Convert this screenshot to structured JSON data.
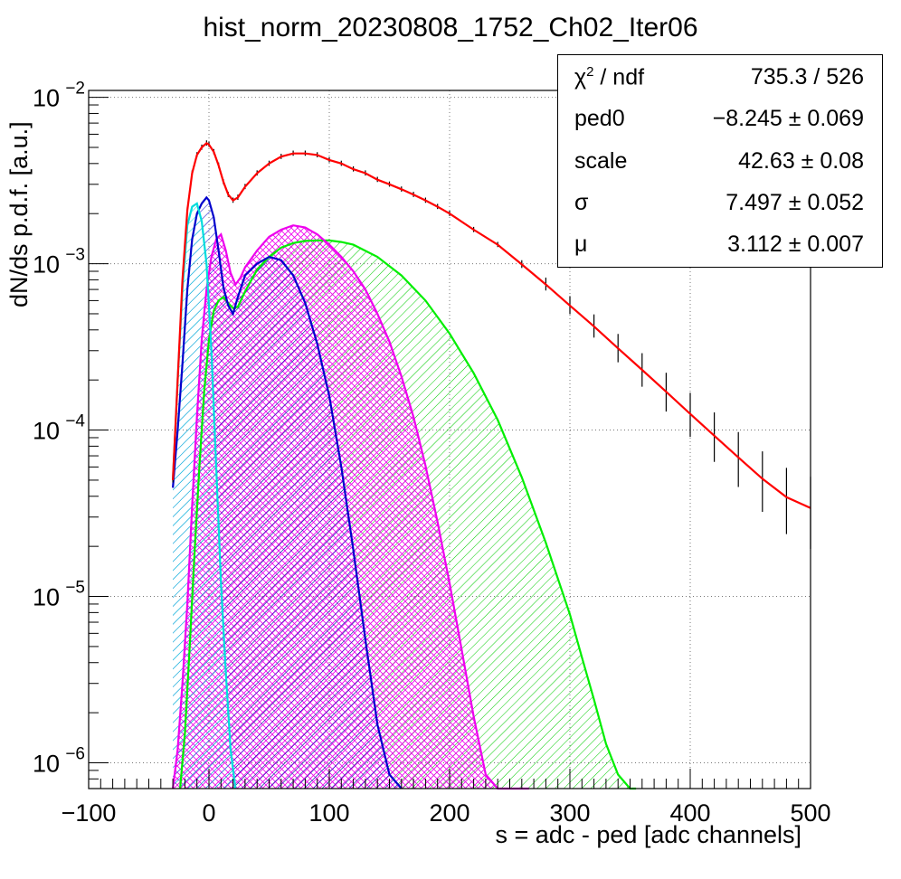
{
  "chart_data": {
    "type": "line",
    "title": "hist_norm_20230808_1752_Ch02_Iter06",
    "xlabel": "s = adc - ped [adc channels]",
    "ylabel": "dN/ds p.d.f. [a.u.]",
    "xlim": [
      -100,
      500
    ],
    "ylim": [
      7e-07,
      0.011
    ],
    "y_scale": "log",
    "grid": true,
    "x_ticks": [
      "−100",
      "0",
      "100",
      "200",
      "300",
      "400",
      "500"
    ],
    "y_ticks": [
      {
        "base": "10",
        "exp": "−2",
        "value": 0.01
      },
      {
        "base": "10",
        "exp": "−3",
        "value": 0.001
      },
      {
        "base": "10",
        "exp": "−4",
        "value": 0.0001
      },
      {
        "base": "10",
        "exp": "−5",
        "value": 1e-05
      },
      {
        "base": "10",
        "exp": "−6",
        "value": 1e-06
      }
    ],
    "series": [
      {
        "color": "#000000",
        "style": "data",
        "x": [
          -30,
          -26,
          -22,
          -18,
          -14,
          -10,
          -6,
          -2,
          0,
          4,
          8,
          12,
          16,
          20,
          24,
          30,
          40,
          50,
          60,
          70,
          80,
          90,
          100,
          110,
          120,
          130,
          140,
          150,
          160,
          170,
          180,
          190,
          200,
          220,
          240,
          260,
          280,
          300,
          320,
          340,
          360,
          380,
          400,
          420,
          440,
          460,
          480,
          500
        ],
        "y": [
          5e-05,
          0.0002,
          0.0008,
          0.0021,
          0.0035,
          0.0045,
          0.005,
          0.0053,
          0.0052,
          0.0047,
          0.0039,
          0.0031,
          0.0026,
          0.0024,
          0.0025,
          0.0029,
          0.0035,
          0.004,
          0.0044,
          0.0046,
          0.0046,
          0.0045,
          0.0042,
          0.004,
          0.0037,
          0.0035,
          0.0032,
          0.003,
          0.0028,
          0.0026,
          0.0024,
          0.0022,
          0.002,
          0.0016,
          0.0013,
          0.00099,
          0.00075,
          0.00056,
          0.00042,
          0.00031,
          0.00023,
          0.00017,
          0.000125,
          9.25e-05,
          6.85e-05,
          5.1e-05,
          3.95e-05,
          3.4e-05
        ]
      },
      {
        "color": "#ff0000",
        "style": "line",
        "x": [
          -30,
          -26,
          -22,
          -18,
          -14,
          -10,
          -6,
          -2,
          0,
          4,
          8,
          12,
          16,
          20,
          24,
          30,
          40,
          50,
          60,
          70,
          80,
          90,
          100,
          110,
          120,
          130,
          140,
          150,
          160,
          170,
          180,
          190,
          200,
          220,
          240,
          260,
          280,
          300,
          320,
          340,
          360,
          380,
          400,
          420,
          440,
          460,
          480,
          500
        ],
        "y": [
          5e-05,
          0.0002,
          0.0008,
          0.0021,
          0.0035,
          0.0045,
          0.005,
          0.0053,
          0.0052,
          0.0047,
          0.0039,
          0.0031,
          0.0026,
          0.0024,
          0.0025,
          0.0029,
          0.0035,
          0.004,
          0.0044,
          0.0046,
          0.0046,
          0.0045,
          0.0042,
          0.004,
          0.0037,
          0.0035,
          0.0032,
          0.003,
          0.0028,
          0.0026,
          0.0024,
          0.0022,
          0.002,
          0.0016,
          0.0013,
          0.00099,
          0.00075,
          0.00056,
          0.00042,
          0.00031,
          0.00023,
          0.00017,
          0.000125,
          9.25e-05,
          6.85e-05,
          5.1e-05,
          3.95e-05,
          3.4e-05
        ]
      },
      {
        "color": "#00dddd",
        "style": "filled",
        "hatch": "diag",
        "x": [
          -30,
          -26,
          -22,
          -18,
          -14,
          -10,
          -6,
          -2,
          2,
          6,
          10,
          14,
          18,
          22
        ],
        "y": [
          5e-05,
          0.0002,
          0.0007,
          0.0017,
          0.0022,
          0.0023,
          0.0018,
          0.001,
          0.0003,
          6e-05,
          1.2e-05,
          3.5e-06,
          1.2e-06,
          6e-07
        ]
      },
      {
        "color": "#0000cc",
        "style": "filled",
        "hatch": "diag",
        "x": [
          -30,
          -26,
          -22,
          -18,
          -14,
          -10,
          -6,
          -2,
          0,
          4,
          8,
          12,
          16,
          20,
          24,
          30,
          40,
          50,
          60,
          70,
          80,
          90,
          100,
          110,
          120,
          130,
          140,
          150,
          160
        ],
        "y": [
          4.5e-05,
          0.0001,
          0.00025,
          0.0007,
          0.0014,
          0.002,
          0.0023,
          0.0025,
          0.0024,
          0.0019,
          0.0012,
          0.00072,
          0.00056,
          0.0005,
          0.00063,
          0.00085,
          0.001,
          0.0011,
          0.00105,
          0.00085,
          0.00058,
          0.00033,
          0.00016,
          6e-05,
          1.9e-05,
          5.5e-06,
          1.7e-06,
          8.5e-07,
          6e-07
        ]
      },
      {
        "color": "#ee00ee",
        "style": "filled",
        "hatch": "cross",
        "x": [
          -30,
          -26,
          -22,
          -18,
          -14,
          -10,
          -6,
          -2,
          2,
          6,
          10,
          14,
          18,
          22,
          26,
          30,
          40,
          50,
          60,
          70,
          80,
          90,
          100,
          110,
          120,
          130,
          140,
          150,
          160,
          170,
          180,
          190,
          200,
          210,
          220,
          230,
          240,
          250,
          260,
          266
        ],
        "y": [
          6e-07,
          1.2e-06,
          3e-06,
          9e-06,
          3.5e-05,
          0.00012,
          0.00035,
          0.0007,
          0.0011,
          0.0014,
          0.0015,
          0.0012,
          0.00088,
          0.00075,
          0.00082,
          0.00095,
          0.0012,
          0.00145,
          0.0016,
          0.0017,
          0.00165,
          0.0015,
          0.0013,
          0.0011,
          0.0009,
          0.0007,
          0.0005,
          0.00034,
          0.00021,
          0.00012,
          6.1e-05,
          2.8e-05,
          1.2e-05,
          4.8e-06,
          1.9e-06,
          8.5e-07,
          6e-07,
          6e-07,
          6e-07,
          6e-07
        ]
      },
      {
        "color": "#00ee00",
        "style": "filled",
        "hatch": "diag",
        "x": [
          -24,
          -20,
          -16,
          -12,
          -8,
          -4,
          0,
          4,
          8,
          12,
          16,
          20,
          24,
          30,
          40,
          50,
          60,
          70,
          80,
          90,
          100,
          110,
          120,
          140,
          160,
          180,
          200,
          220,
          240,
          260,
          280,
          300,
          310,
          320,
          330,
          340,
          350,
          355
        ],
        "y": [
          6e-07,
          1.5e-06,
          5e-06,
          1.8e-05,
          6e-05,
          0.00017,
          0.00035,
          0.00052,
          0.0006,
          0.00063,
          0.00058,
          0.00054,
          0.00055,
          0.00068,
          0.00092,
          0.0011,
          0.00125,
          0.00133,
          0.00137,
          0.00138,
          0.00138,
          0.00135,
          0.0013,
          0.0011,
          0.00085,
          0.0006,
          0.00038,
          0.00022,
          0.000115,
          5.2e-05,
          2.1e-05,
          7.8e-06,
          4.3e-06,
          2.4e-06,
          1.3e-06,
          8.5e-07,
          6e-07,
          6e-07
        ]
      }
    ]
  },
  "stats": [
    {
      "name": "χ",
      "sup": "2",
      "rest": " / ndf",
      "value": "735.3 / 526"
    },
    {
      "name": "ped0",
      "value": "−8.245 ± 0.069"
    },
    {
      "name": "scale",
      "value": "42.63 ± 0.08"
    },
    {
      "name": "σ",
      "value": "7.497 ± 0.052"
    },
    {
      "name": "μ",
      "value": "3.112 ± 0.007"
    }
  ]
}
